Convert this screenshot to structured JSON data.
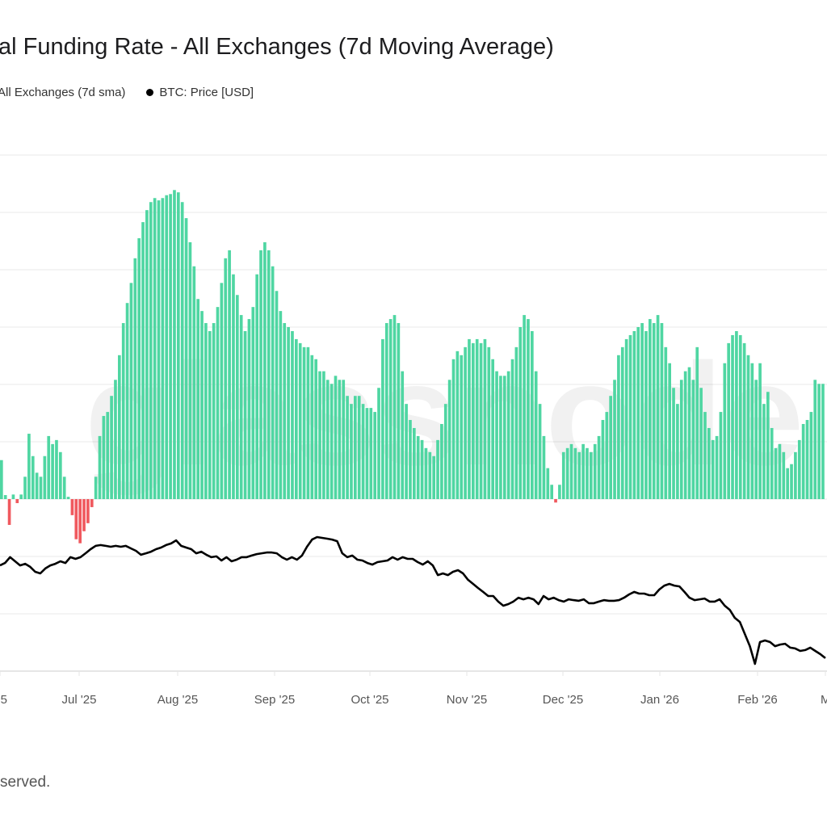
{
  "chart_data": {
    "type": "bar",
    "title": "al Funding Rate - All Exchanges (7d Moving Average)",
    "legend": {
      "placement": "top-left",
      "entries": [
        "All Exchanges (7d sma)",
        "BTC: Price [USD]"
      ]
    },
    "grid": true,
    "watermark": "glassnode",
    "x_ticks": [
      "5",
      "Jul '25",
      "Aug '25",
      "Sep '25",
      "Oct '25",
      "Nov '25",
      "Dec '25",
      "Jan '26",
      "Feb '26",
      "M"
    ],
    "funding": {
      "name": "All Exchanges (7d sma)",
      "ylim": [
        -3,
        6
      ],
      "positive_color": "#4fd6a2",
      "negative_color": "#f0595e",
      "values": [
        0.68,
        0.07,
        -0.45,
        0.08,
        -0.07,
        0.08,
        0.39,
        1.14,
        0.75,
        0.46,
        0.39,
        0.75,
        1.1,
        0.96,
        1.03,
        0.82,
        0.39,
        0.04,
        -0.28,
        -0.7,
        -0.77,
        -0.56,
        -0.42,
        -0.14,
        0.39,
        1.1,
        1.45,
        1.52,
        1.8,
        2.08,
        2.51,
        3.07,
        3.42,
        3.77,
        4.2,
        4.55,
        4.83,
        5.04,
        5.18,
        5.25,
        5.21,
        5.25,
        5.3,
        5.32,
        5.39,
        5.35,
        5.18,
        4.9,
        4.48,
        4.06,
        3.49,
        3.28,
        3.07,
        2.93,
        3.07,
        3.35,
        3.77,
        4.2,
        4.34,
        3.92,
        3.56,
        3.21,
        2.93,
        3.14,
        3.35,
        3.92,
        4.34,
        4.48,
        4.34,
        4.06,
        3.63,
        3.28,
        3.07,
        3.0,
        2.93,
        2.79,
        2.72,
        2.65,
        2.65,
        2.51,
        2.44,
        2.23,
        2.23,
        2.08,
        2.01,
        2.15,
        2.08,
        2.08,
        1.8,
        1.66,
        1.8,
        1.8,
        1.66,
        1.59,
        1.59,
        1.52,
        1.94,
        2.79,
        3.07,
        3.14,
        3.21,
        3.07,
        2.23,
        1.66,
        1.38,
        1.24,
        1.1,
        1.03,
        0.89,
        0.82,
        0.75,
        1.03,
        1.31,
        1.66,
        2.08,
        2.44,
        2.58,
        2.51,
        2.65,
        2.79,
        2.72,
        2.79,
        2.72,
        2.79,
        2.65,
        2.44,
        2.23,
        2.15,
        2.15,
        2.23,
        2.44,
        2.65,
        3.0,
        3.21,
        3.14,
        2.93,
        2.23,
        1.66,
        1.1,
        0.54,
        0.25,
        -0.06,
        0.25,
        0.82,
        0.89,
        0.96,
        0.89,
        0.82,
        0.96,
        0.89,
        0.82,
        0.96,
        1.1,
        1.38,
        1.52,
        1.8,
        2.08,
        2.51,
        2.65,
        2.79,
        2.86,
        2.93,
        3.0,
        3.07,
        2.93,
        3.14,
        3.07,
        3.21,
        3.07,
        2.65,
        2.37,
        1.94,
        1.66,
        2.08,
        2.23,
        2.3,
        2.08,
        2.65,
        1.94,
        1.52,
        1.24,
        1.03,
        1.1,
        1.52,
        2.37,
        2.72,
        2.86,
        2.93,
        2.86,
        2.72,
        2.51,
        2.37,
        2.08,
        2.37,
        1.66,
        1.87,
        1.24,
        0.89,
        0.96,
        0.82,
        0.54,
        0.61,
        0.82,
        1.03,
        1.31,
        1.38,
        1.52,
        2.08,
        2.01,
        2.01
      ]
    },
    "price": {
      "name": "BTC: Price [USD]",
      "color": "#000000",
      "unit": "USD (thousands)",
      "values": [
        110.2,
        111.4,
        114.2,
        112.2,
        110.2,
        111.0,
        109.5,
        107.1,
        106.3,
        108.7,
        110.2,
        111.0,
        112.2,
        111.4,
        114.2,
        113.4,
        114.2,
        116.1,
        118.1,
        119.7,
        120.1,
        119.7,
        119.3,
        119.7,
        119.3,
        119.7,
        118.5,
        117.3,
        115.4,
        116.1,
        116.9,
        118.1,
        118.9,
        120.1,
        120.9,
        122.4,
        119.7,
        118.9,
        118.1,
        116.1,
        116.9,
        115.4,
        114.2,
        114.6,
        112.6,
        114.2,
        112.2,
        113.0,
        114.2,
        114.2,
        115.0,
        115.7,
        116.1,
        116.5,
        116.5,
        116.1,
        114.2,
        113.0,
        114.2,
        113.0,
        115.0,
        119.3,
        122.8,
        124.0,
        123.6,
        123.2,
        122.8,
        122.0,
        116.1,
        114.2,
        115.0,
        113.0,
        112.6,
        111.4,
        110.6,
        111.8,
        112.2,
        112.6,
        114.2,
        113.0,
        114.2,
        113.4,
        113.4,
        111.8,
        110.6,
        112.2,
        110.2,
        105.5,
        106.3,
        105.5,
        107.1,
        107.9,
        106.3,
        103.2,
        101.2,
        99.2,
        97.3,
        95.3,
        95.3,
        92.6,
        90.6,
        91.4,
        92.6,
        94.5,
        93.7,
        94.5,
        93.7,
        91.4,
        95.3,
        93.7,
        94.5,
        93.3,
        92.6,
        93.7,
        93.3,
        93.0,
        93.7,
        91.8,
        91.8,
        92.6,
        93.3,
        93.0,
        93.0,
        93.3,
        94.5,
        96.1,
        97.3,
        96.5,
        96.5,
        95.7,
        95.7,
        98.5,
        100.4,
        101.2,
        100.4,
        100.0,
        97.3,
        94.5,
        93.3,
        93.7,
        94.1,
        92.6,
        92.6,
        93.7,
        90.6,
        88.6,
        84.7,
        82.7,
        76.8,
        70.9,
        62.3,
        72.9,
        73.7,
        72.9,
        70.9,
        71.7,
        72.1,
        70.2,
        69.8,
        68.6,
        69.0,
        70.2,
        68.6,
        67.0,
        65.1
      ]
    }
  },
  "legend": {
    "funding_label": "All Exchanges (7d sma)",
    "price_label": "BTC: Price [USD]"
  },
  "footer": {
    "text": "served."
  }
}
